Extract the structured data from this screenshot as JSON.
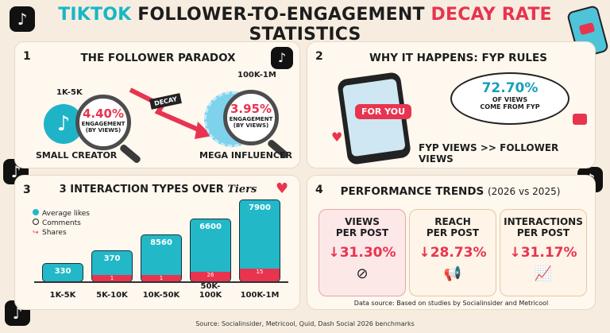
{
  "title": {
    "part1": "TIKTOK",
    "part2": "FOLLOWER-TO-ENGAGEMENT",
    "part3": "DECAY RATE",
    "part4": "STATISTICS"
  },
  "colors": {
    "teal": "#18b7c4",
    "red": "#e8344f",
    "dark": "#1d1d1d"
  },
  "panel1": {
    "number": "1",
    "title": "THE FOLLOWER PARADOX",
    "small": {
      "tier": "1K-5K",
      "pct": "4.40%",
      "sub1": "ENGAGEMENT",
      "sub2": "(BY VIEWS)",
      "label": "SMALL CREATOR"
    },
    "decay": "DECAY",
    "mega": {
      "tier": "100K-1M",
      "pct": "3.95%",
      "sub1": "ENGAGEMENT",
      "sub2": "(BY VIEWS)",
      "label": "MEGA INFLUENCER"
    }
  },
  "panel2": {
    "number": "2",
    "title": "WHY IT HAPPENS: FYP RULES",
    "foryou": "FOR YOU",
    "bubble_pct": "72.70%",
    "bubble_l1": "OF VIEWS",
    "bubble_l2": "COME FROM FYP",
    "compare": "FYP VIEWS >> FOLLOWER VIEWS"
  },
  "panel3": {
    "number": "3",
    "title_a": "3 INTERACTION TYPES OVER",
    "title_b": "Tiers",
    "legend": [
      "Average likes",
      "Comments",
      "Shares"
    ],
    "bars": [
      {
        "tier": "1K-5K",
        "likes": "330",
        "comments": ""
      },
      {
        "tier": "5K-10K",
        "likes": "370",
        "comments": "1"
      },
      {
        "tier": "10K-50K",
        "likes": "8560",
        "comments": "1"
      },
      {
        "tier": "50K-100K",
        "likes": "6600",
        "comments": "26"
      },
      {
        "tier": "100K-1M",
        "likes": "7900",
        "comments": "15"
      }
    ]
  },
  "panel4": {
    "number": "4",
    "title": "PERFORMANCE TRENDS",
    "title_sub": "(2026 vs 2025)",
    "cards": [
      {
        "l1": "VIEWS",
        "l2": "PER POST",
        "value": "31.30%"
      },
      {
        "l1": "REACH",
        "l2": "PER POST",
        "value": "28.73%"
      },
      {
        "l1": "INTERACTIONS",
        "l2": "PER POST",
        "value": "31.17%"
      }
    ],
    "source_note": "Data source: Based on studies by Socialinsider and Metricool"
  },
  "footer": "Source: Socialinsider, Metricool, Quid, Dash Social 2026 benchmarks"
}
